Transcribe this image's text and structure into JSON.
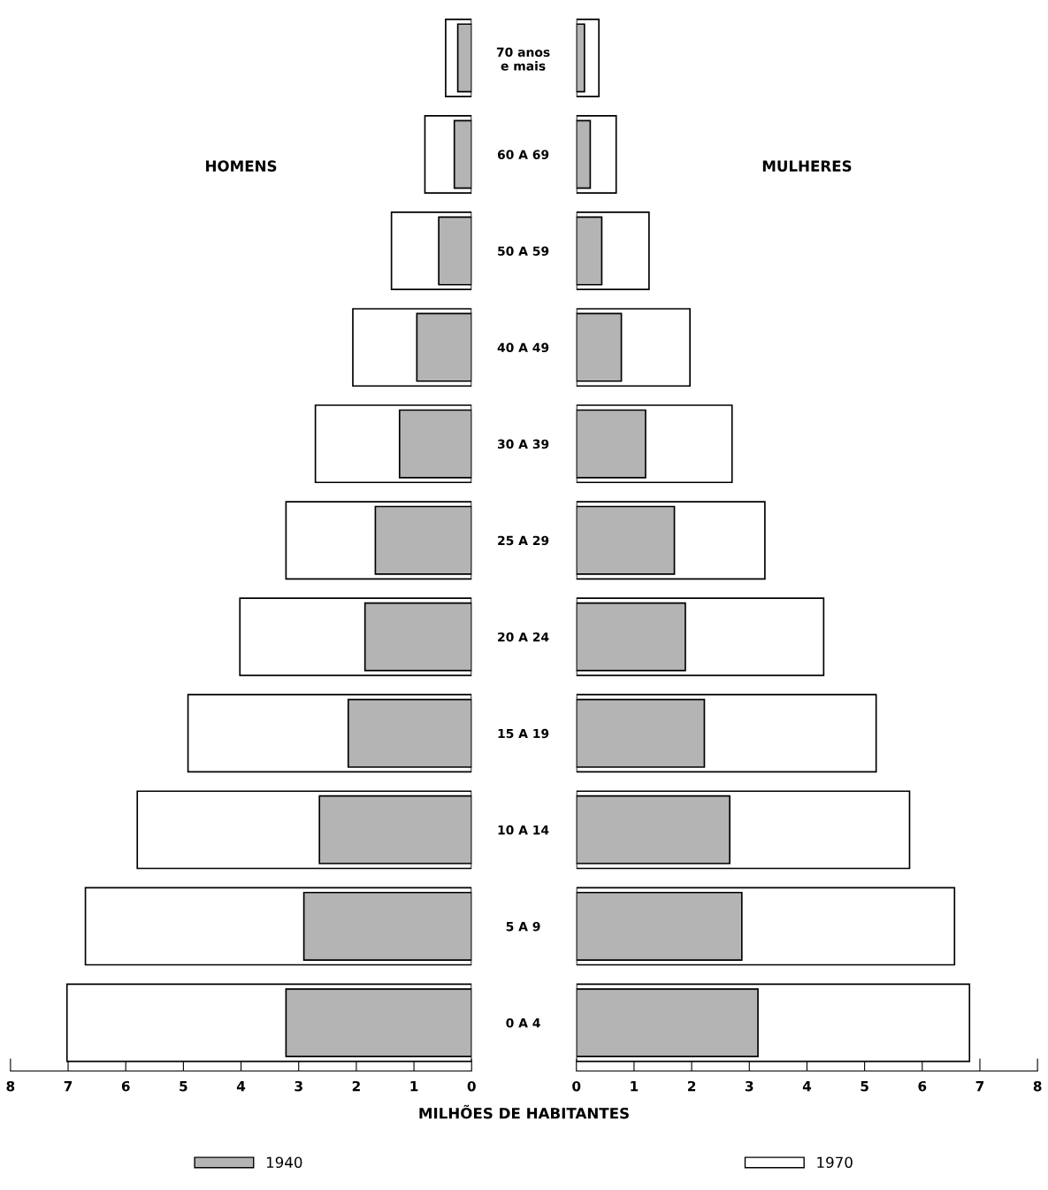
{
  "chart_data": [
    {
      "type": "bar",
      "orientation": "horizontal",
      "title": "HOMENS",
      "xlabel": "MILHÕES DE HABITANTES",
      "categories": [
        "70 anos\ne mais",
        "60 A 69",
        "50 A 59",
        "40 A 49",
        "30 A 39",
        "25 A 29",
        "20 A 24",
        "15 A 19",
        "10 A 14",
        "5 A 9",
        "0 A 4"
      ],
      "series": [
        {
          "name": "1940",
          "color": "#b4b4b4",
          "values": [
            0.24,
            0.3,
            0.57,
            0.95,
            1.25,
            1.67,
            1.85,
            2.14,
            2.64,
            2.91,
            3.22
          ]
        },
        {
          "name": "1970",
          "color": "#ffffff",
          "values": [
            0.45,
            0.81,
            1.39,
            2.06,
            2.71,
            3.22,
            4.02,
            4.92,
            5.8,
            6.7,
            7.02
          ]
        }
      ],
      "xlim": [
        8,
        0
      ],
      "xticks": [
        8,
        7,
        6,
        5,
        4,
        3,
        2,
        1,
        0
      ],
      "grid": false,
      "legend": "bottom"
    },
    {
      "type": "bar",
      "orientation": "horizontal",
      "title": "MULHERES",
      "categories": [
        "70 anos\ne mais",
        "60 A 69",
        "50 A 59",
        "40 A 49",
        "30 A 39",
        "25 A 29",
        "20 A 24",
        "15 A 19",
        "10 A 14",
        "5 A 9",
        "0 A 4"
      ],
      "series": [
        {
          "color": "#b4b4b4",
          "values": [
            0.14,
            0.24,
            0.44,
            0.78,
            1.2,
            1.7,
            1.89,
            2.22,
            2.66,
            2.87,
            3.15
          ]
        },
        {
          "color": "#ffffff",
          "values": [
            0.39,
            0.69,
            1.26,
            1.97,
            2.7,
            3.27,
            4.29,
            5.2,
            5.78,
            6.56,
            6.82
          ]
        }
      ],
      "xlim": [
        0,
        8
      ],
      "xticks": [
        0,
        1,
        2,
        3,
        4,
        5,
        6,
        7,
        8
      ],
      "grid": false,
      "tick_labels": "x"
    }
  ]
}
